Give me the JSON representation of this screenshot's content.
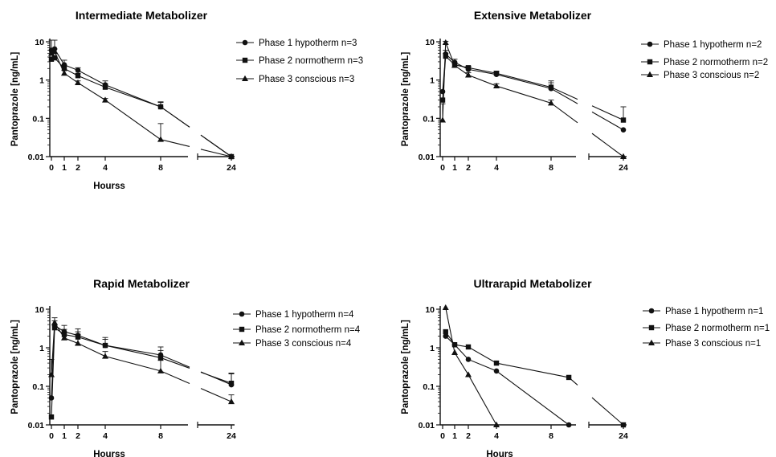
{
  "chart_data": [
    {
      "type": "line",
      "title": "Intermediate Metabolizer",
      "xlabel": "Hourss",
      "ylabel": "Pantoprazole [ng/mL]",
      "yscale": "log",
      "ylim": [
        0.01,
        10
      ],
      "xticks": [
        "0",
        "1",
        "2",
        "4",
        "8",
        "24"
      ],
      "yticks": [
        "0.01",
        "0.1",
        "1",
        "10"
      ],
      "legend_position": "right",
      "series": [
        {
          "name": "Phase 1 hypotherm n=3",
          "marker": "circle",
          "x": [
            0,
            0.25,
            1,
            2,
            4,
            8,
            24
          ],
          "y": [
            6.0,
            6.5,
            2.5,
            1.8,
            0.75,
            0.2,
            0.01
          ],
          "err": [
            5.0,
            4.5,
            0.8,
            0.3,
            0.2,
            0.06,
            0
          ]
        },
        {
          "name": "Phase 2 normotherm n=3",
          "marker": "square",
          "x": [
            0,
            0.25,
            1,
            2,
            4,
            8,
            24
          ],
          "y": [
            3.5,
            3.8,
            2.0,
            1.3,
            0.65,
            0.2,
            0.01
          ],
          "err": [
            0.4,
            0.3,
            0.4,
            0.2,
            0.15,
            0.07,
            0
          ]
        },
        {
          "name": "Phase 3 conscious n=3",
          "marker": "triangle",
          "x": [
            0,
            0.25,
            1,
            2,
            4,
            8,
            24
          ],
          "y": [
            5.0,
            5.5,
            1.5,
            0.85,
            0.3,
            0.028,
            0.01
          ],
          "err": [
            1.0,
            1.0,
            0.3,
            0.1,
            0.03,
            0.045,
            0
          ]
        }
      ]
    },
    {
      "type": "line",
      "title": "Extensive Metabolizer",
      "xlabel": "",
      "ylabel": "Pantoprazole [ng/mL]",
      "yscale": "log",
      "ylim": [
        0.01,
        10
      ],
      "xticks": [
        "0",
        "1",
        "2",
        "4",
        "8",
        "24"
      ],
      "yticks": [
        "0.01",
        "0.1",
        "1",
        "10"
      ],
      "legend_position": "right",
      "series": [
        {
          "name": "Phase 1 hypotherm n=2",
          "marker": "circle",
          "x": [
            0,
            0.25,
            1,
            2,
            4,
            8,
            24
          ],
          "y": [
            0.5,
            4.8,
            2.9,
            1.9,
            1.4,
            0.6,
            0.05
          ],
          "err": [
            0,
            1.2,
            0.6,
            0.3,
            0.2,
            0.25,
            0
          ]
        },
        {
          "name": "Phase 2 normotherm n=2",
          "marker": "square",
          "x": [
            0,
            0.25,
            1,
            2,
            4,
            8,
            24
          ],
          "y": [
            0.3,
            4.2,
            2.5,
            2.1,
            1.5,
            0.65,
            0.09
          ],
          "err": [
            0,
            0.8,
            0.4,
            0.2,
            0.2,
            0.3,
            0.11
          ]
        },
        {
          "name": "Phase 3 conscious n=2",
          "marker": "triangle",
          "x": [
            0,
            0.25,
            1,
            2,
            4,
            8,
            24
          ],
          "y": [
            0.09,
            9.5,
            2.4,
            1.35,
            0.7,
            0.25,
            0.01
          ],
          "err": [
            0.15,
            0.8,
            0.3,
            0.2,
            0.1,
            0.05,
            0
          ]
        }
      ]
    },
    {
      "type": "line",
      "title": "Rapid Metabolizer",
      "xlabel": "Hourss",
      "ylabel": "Pantoprazole [ng/mL]",
      "yscale": "log",
      "ylim": [
        0.01,
        10
      ],
      "xticks": [
        "0",
        "1",
        "2",
        "4",
        "8",
        "24"
      ],
      "yticks": [
        "0.01",
        "0.1",
        "1",
        "10"
      ],
      "legend_position": "right",
      "series": [
        {
          "name": "Phase 1 hypotherm n=4",
          "marker": "circle",
          "x": [
            0,
            0.25,
            1,
            2,
            4,
            8,
            24
          ],
          "y": [
            0.05,
            3.8,
            2.6,
            2.1,
            1.15,
            0.65,
            0.11
          ],
          "err": [
            0,
            1.2,
            1.2,
            1.0,
            0.7,
            0.4,
            0.1
          ]
        },
        {
          "name": "Phase 2 normotherm n=4",
          "marker": "square",
          "x": [
            0,
            0.25,
            1,
            2,
            4,
            8,
            24
          ],
          "y": [
            0.016,
            3.3,
            2.2,
            1.9,
            1.15,
            0.55,
            0.12
          ],
          "err": [
            0,
            0.8,
            0.8,
            0.7,
            0.5,
            0.3,
            0.1
          ]
        },
        {
          "name": "Phase 3 conscious n=4",
          "marker": "triangle",
          "x": [
            0,
            0.25,
            1,
            2,
            4,
            8,
            24
          ],
          "y": [
            0.2,
            4.5,
            1.8,
            1.3,
            0.6,
            0.25,
            0.04
          ],
          "err": [
            0.3,
            1.5,
            0.7,
            0.95,
            0.2,
            0.22,
            0.02
          ]
        }
      ]
    },
    {
      "type": "line",
      "title": "Ultrarapid Metabolizer",
      "xlabel": "Hours",
      "ylabel": "Pantoprazole [ng/mL]",
      "yscale": "log",
      "ylim": [
        0.01,
        10
      ],
      "xticks": [
        "0",
        "1",
        "2",
        "4",
        "8",
        "24"
      ],
      "yticks": [
        "0.01",
        "0.1",
        "1",
        "10"
      ],
      "legend_position": "right",
      "series": [
        {
          "name": "Phase 1 hypotherm n=1",
          "marker": "circle",
          "x": [
            0.25,
            1,
            2,
            4,
            9.3
          ],
          "y": [
            2.0,
            1.2,
            0.5,
            0.25,
            0.01
          ]
        },
        {
          "name": "Phase 2 normotherm n=1",
          "marker": "square",
          "x": [
            0.25,
            1,
            2,
            4,
            9.3,
            24
          ],
          "y": [
            2.6,
            1.2,
            1.05,
            0.4,
            0.17,
            0.01
          ]
        },
        {
          "name": "Phase 3 conscious n=1",
          "marker": "triangle",
          "x": [
            0.25,
            1,
            2,
            4
          ],
          "y": [
            11.0,
            0.75,
            0.2,
            0.01
          ]
        }
      ]
    }
  ]
}
